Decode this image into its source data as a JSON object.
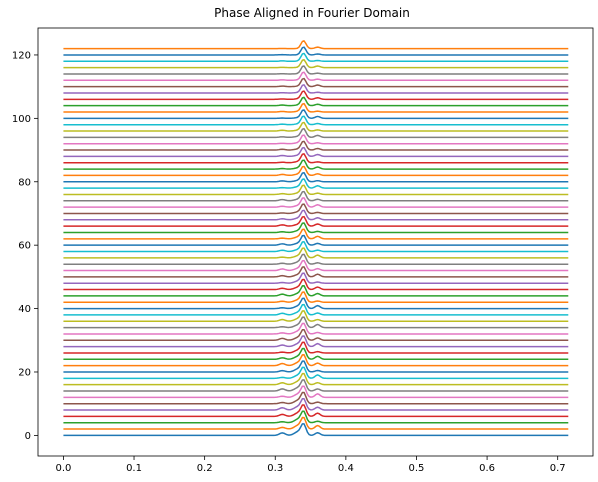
{
  "chart_data": {
    "type": "line",
    "title": "Phase Aligned in Fourier Domain",
    "xlabel": "",
    "ylabel": "",
    "xlim": [
      -0.036,
      0.75
    ],
    "ylim": [
      -6.5,
      128.5
    ],
    "xticks": [
      0.0,
      0.1,
      0.2,
      0.3,
      0.4,
      0.5,
      0.6,
      0.7
    ],
    "yticks": [
      0,
      20,
      40,
      60,
      80,
      100,
      120
    ],
    "grid": false,
    "legend": "none",
    "x_range": [
      0.0,
      0.715
    ],
    "n_series": 62,
    "series_offset_step": 2,
    "peak_positions": {
      "left_shoulder": 0.31,
      "main": 0.34,
      "right_shoulder": 0.36
    },
    "main_peak_height_first": 3.5,
    "main_peak_height_last": 2.5,
    "left_shoulder_height_first": 0.8,
    "right_shoulder_height_first": 1.2,
    "colors": [
      "#1f77b4",
      "#ff7f0e",
      "#2ca02c",
      "#d62728",
      "#9467bd",
      "#8c564b",
      "#e377c2",
      "#7f7f7f",
      "#bcbd22",
      "#17becf"
    ]
  }
}
